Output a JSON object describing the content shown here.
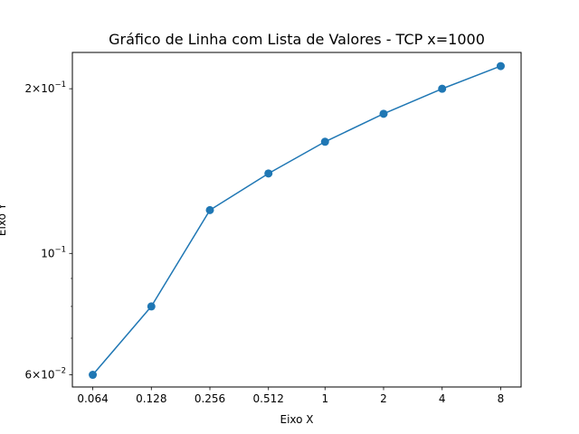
{
  "chart_data": {
    "type": "line",
    "title": "Gráfico de Linha com Lista de Valores - TCP x=1000",
    "xlabel": "Eixo X",
    "ylabel": "Eixo Y",
    "x": [
      0.064,
      0.128,
      0.256,
      0.512,
      1,
      2,
      4,
      8
    ],
    "x_tick_labels": [
      "0.064",
      "0.128",
      "0.256",
      "0.512",
      "1",
      "2",
      "4",
      "8"
    ],
    "x_scale": "log2",
    "y_scale": "log",
    "series": [
      {
        "values": [
          0.06,
          0.08,
          0.12,
          0.14,
          0.16,
          0.18,
          0.2,
          0.22
        ],
        "color": "#1f77b4",
        "marker": "circle"
      }
    ],
    "y_ticks": [
      {
        "value": 0.06,
        "mantissa": "6",
        "base": "10",
        "exponent": "−2"
      },
      {
        "value": 0.1,
        "mantissa": "",
        "base": "10",
        "exponent": "−1"
      },
      {
        "value": 0.2,
        "mantissa": "2",
        "base": "10",
        "exponent": "−1"
      }
    ],
    "ylim": [
      0.057,
      0.233
    ],
    "grid": false,
    "legend": "none"
  }
}
